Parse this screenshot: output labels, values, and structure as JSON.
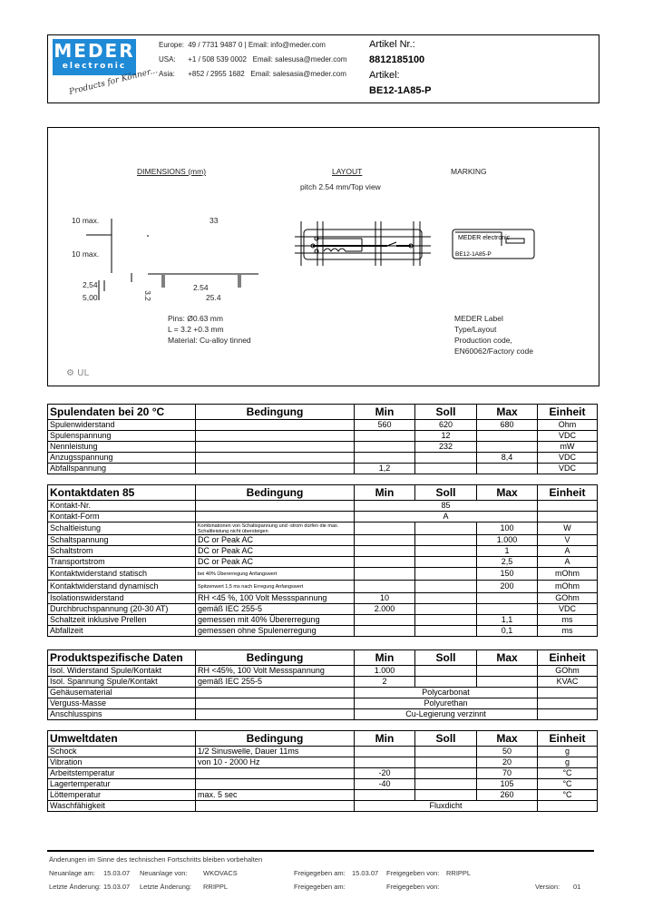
{
  "header": {
    "logo_top": "MEDER",
    "logo_bottom": "electronic",
    "slogan": "Products for Könner...",
    "contacts": [
      {
        "region": "Europe:",
        "phone": "49 / 7731 9487 0",
        "email": "Email: info@meder.com"
      },
      {
        "region": "USA:",
        "phone": "+1 / 508 539 0002",
        "email": "Email: salesusa@meder.com"
      },
      {
        "region": "Asia:",
        "phone": "+852 / 2955 1682",
        "email": "Email: salesasia@meder.com"
      }
    ],
    "artikel_nr_label": "Artikel Nr.:",
    "artikel_nr": "8812185100",
    "artikel_label": "Artikel:",
    "artikel": "BE12-1A85-P"
  },
  "drawing": {
    "dimensions_title": "DIMENSIONS (mm)",
    "layout_title": "LAYOUT",
    "layout_sub": "pitch 2.54 mm/Top view",
    "marking_title": "MARKING",
    "dims": {
      "h1": "10 max.",
      "h2": "10 max.",
      "w": "33",
      "p1": "2,54",
      "p2": "5,00",
      "pin": "3.2",
      "p3": "2.54",
      "w2": "25.4"
    },
    "pin_notes": [
      "Pins: Ø0.63 mm",
      "L = 3.2 +0.3 mm",
      "Material: Cu-alloy tinned"
    ],
    "label_logo": "MEDER electronic",
    "label_type": "BE12-1A85-P",
    "marking_notes": [
      "MEDER Label",
      "Type/Layout",
      "Production code,",
      "EN60062/Factory code"
    ]
  },
  "columns": [
    "Bedingung",
    "Min",
    "Soll",
    "Max",
    "Einheit"
  ],
  "tables": [
    {
      "title": "Spulendaten bei 20 °C",
      "rows": [
        {
          "label": "Spulenwiderstand",
          "cond": "",
          "min": "560",
          "soll": "620",
          "max": "680",
          "unit": "Ohm"
        },
        {
          "label": "Spulenspannung",
          "cond": "",
          "min": "",
          "soll": "12",
          "max": "",
          "unit": "VDC"
        },
        {
          "label": "Nennleistung",
          "cond": "",
          "min": "",
          "soll": "232",
          "max": "",
          "unit": "mW"
        },
        {
          "label": "Anzugsspannung",
          "cond": "",
          "min": "",
          "soll": "",
          "max": "8,4",
          "unit": "VDC"
        },
        {
          "label": "Abfallspannung",
          "cond": "",
          "min": "1,2",
          "soll": "",
          "max": "",
          "unit": "VDC"
        }
      ]
    },
    {
      "title": "Kontaktdaten  85",
      "rows": [
        {
          "label": "Kontakt-Nr.",
          "cond": "",
          "span": "85"
        },
        {
          "label": "Kontakt-Form",
          "cond": "",
          "span": "A"
        },
        {
          "label": "Schaltleistung",
          "cond": "Kombinationen von Schaltspannung und -strom dürfen die max. Schaltleistung nicht übersteigen",
          "small": true,
          "min": "",
          "soll": "",
          "max": "100",
          "unit": "W"
        },
        {
          "label": "Schaltspannung",
          "cond": "DC or Peak AC",
          "min": "",
          "soll": "",
          "max": "1.000",
          "unit": "V"
        },
        {
          "label": "Schaltstrom",
          "cond": "DC or Peak AC",
          "min": "",
          "soll": "",
          "max": "1",
          "unit": "A"
        },
        {
          "label": "Transportstrom",
          "cond": "DC or Peak AC",
          "min": "",
          "soll": "",
          "max": "2,5",
          "unit": "A"
        },
        {
          "label": "Kontaktwiderstand statisch",
          "cond": "bei 40% Übererregung Anfangswert",
          "small": true,
          "min": "",
          "soll": "",
          "max": "150",
          "unit": "mOhm"
        },
        {
          "label": "Kontaktwiderstand dynamisch",
          "cond": "Spitzenwert 1,5 ms nach Erregung Anfangswert",
          "small": true,
          "min": "",
          "soll": "",
          "max": "200",
          "unit": "mOhm"
        },
        {
          "label": "Isolationswiderstand",
          "cond": "RH <45 %, 100 Volt Messspannung",
          "min": "10",
          "soll": "",
          "max": "",
          "unit": "GOhm"
        },
        {
          "label": "Durchbruchspannung  (20-30 AT)",
          "cond": "gemäß  IEC 255-5",
          "min": "2.000",
          "soll": "",
          "max": "",
          "unit": "VDC"
        },
        {
          "label": "Schaltzeit inklusive Prellen",
          "cond": "gemessen mit 40% Übererregung",
          "min": "",
          "soll": "",
          "max": "1,1",
          "unit": "ms"
        },
        {
          "label": "Abfallzeit",
          "cond": "gemessen ohne Spulenerregung",
          "min": "",
          "soll": "",
          "max": "0,1",
          "unit": "ms"
        }
      ]
    },
    {
      "title": "Produktspezifische Daten",
      "rows": [
        {
          "label": "Isol. Widerstand Spule/Kontakt",
          "cond": "RH <45%, 100 Volt Messspannung",
          "min": "1.000",
          "soll": "",
          "max": "",
          "unit": "GOhm"
        },
        {
          "label": "Isol. Spannung Spule/Kontakt",
          "cond": "gemäß  IEC 255-5",
          "min": "2",
          "soll": "",
          "max": "",
          "unit": "KVAC"
        },
        {
          "label": "Gehäusematerial",
          "cond": "",
          "span": "Polycarbonat"
        },
        {
          "label": "Verguss-Masse",
          "cond": "",
          "span": "Polyurethan"
        },
        {
          "label": "Anschlusspins",
          "cond": "",
          "span": "Cu-Legierung verzinnt"
        }
      ]
    },
    {
      "title": "Umweltdaten",
      "rows": [
        {
          "label": "Schock",
          "cond": "1/2 Sinuswelle, Dauer 11ms",
          "min": "",
          "soll": "",
          "max": "50",
          "unit": "g"
        },
        {
          "label": "Vibration",
          "cond": "von  10 - 2000 Hz",
          "min": "",
          "soll": "",
          "max": "20",
          "unit": "g"
        },
        {
          "label": "Arbeitstemperatur",
          "cond": "",
          "min": "-20",
          "soll": "",
          "max": "70",
          "unit": "°C"
        },
        {
          "label": "Lagertemperatur",
          "cond": "",
          "min": "-40",
          "soll": "",
          "max": "105",
          "unit": "°C"
        },
        {
          "label": "Löttemperatur",
          "cond": "max. 5 sec",
          "min": "",
          "soll": "",
          "max": "260",
          "unit": "°C"
        },
        {
          "label": "Waschfähigkeit",
          "cond": "",
          "span": "Fluxdicht"
        }
      ]
    }
  ],
  "footer": {
    "note": "Änderungen im Sinne des technischen Fortschritts bleiben vorbehalten",
    "neuanlage_am_label": "Neuanlage am:",
    "neuanlage_am": "15.03.07",
    "neuanlage_von_label": "Neuanlage von:",
    "neuanlage_von": "WKOVACS",
    "freigegeben_am_label": "Freigegeben am:",
    "freigegeben_am": "15.03.07",
    "freigegeben_von_label": "Freigegeben von:",
    "freigegeben_von": "RRIPPL",
    "letzte_am_label": "Letzte Änderung:",
    "letzte_am": "15.03.07",
    "letzte_von_label": "Letzte Änderung:",
    "letzte_von": "RRIPPL",
    "freigegeben_am2_label": "Freigegeben am:",
    "freigegeben_von2_label": "Freigegeben von:",
    "version_label": "Version:",
    "version": "01"
  }
}
